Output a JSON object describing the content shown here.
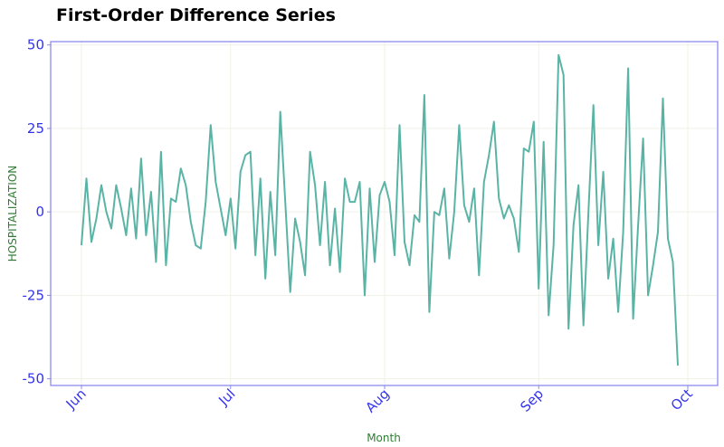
{
  "chart_data": {
    "type": "line",
    "title": "First-Order Difference Series",
    "xlabel": "Month",
    "ylabel": "HOSPITALIZATION",
    "x_start": "2020-06-01",
    "x_end": "2020-09-30",
    "ylim": [
      -52,
      51
    ],
    "yticks": [
      50,
      25,
      0,
      -25,
      -50
    ],
    "xticks": [
      {
        "date": "2020-06-01",
        "label": "Jun"
      },
      {
        "date": "2020-07-01",
        "label": "Jul"
      },
      {
        "date": "2020-08-01",
        "label": "Aug"
      },
      {
        "date": "2020-09-01",
        "label": "Sep"
      },
      {
        "date": "2020-10-01",
        "label": "Oct"
      }
    ],
    "grid": true,
    "colors": {
      "line": "#5ab4a5",
      "frame": "#8a8af0",
      "grid": "#f1f1e6",
      "tick": "#3333ee",
      "axis_label": "#2e7d32"
    },
    "series": [
      {
        "values": [
          -10,
          10,
          -9,
          -2,
          8,
          0,
          -5,
          8,
          1,
          -7,
          7,
          -8,
          16,
          -7,
          6,
          -15,
          18,
          -16,
          4,
          3,
          13,
          8,
          -3,
          -10,
          -11,
          3,
          26,
          9,
          1,
          -7,
          4,
          -11,
          12,
          17,
          18,
          -13,
          10,
          -20,
          6,
          -13,
          30,
          3,
          -24,
          -2,
          -9,
          -19,
          18,
          8,
          -10,
          9,
          -16,
          1,
          -18,
          10,
          3,
          3,
          9,
          -25,
          7,
          -15,
          5,
          9,
          3,
          -13,
          26,
          -9,
          -16,
          -1,
          -3,
          35,
          -30,
          0,
          -1,
          7,
          -14,
          0,
          26,
          2,
          -3,
          7,
          -19,
          9,
          17,
          27,
          4,
          -2,
          2,
          -2,
          -12,
          19,
          18,
          27,
          -23,
          21,
          -31,
          -10,
          47,
          41,
          -35,
          -4,
          8,
          -34,
          0,
          32,
          -10,
          12,
          -20,
          -8,
          -30,
          -6,
          43,
          -32,
          -4,
          22,
          -25,
          -16,
          -6,
          34,
          -8,
          -15,
          -46
        ]
      }
    ]
  }
}
